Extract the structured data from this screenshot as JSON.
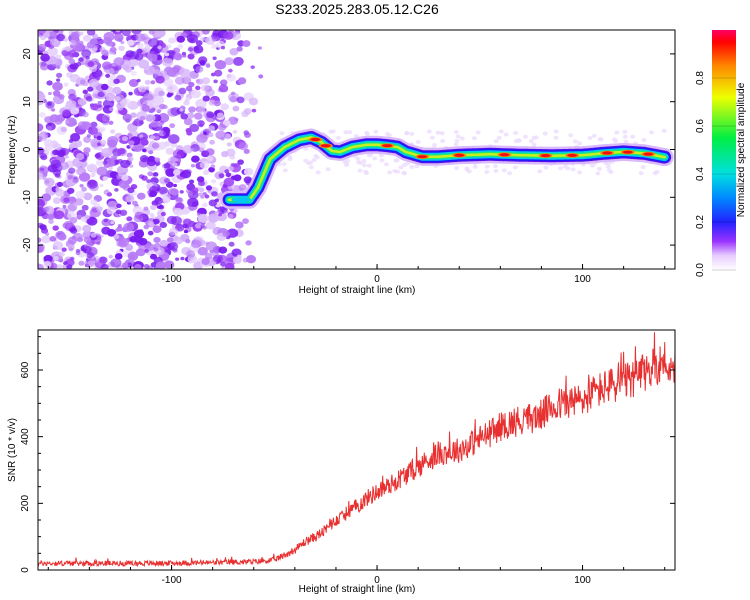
{
  "figure_title": "S233.2025.283.05.12.C26",
  "chart_data": [
    {
      "type": "heatmap",
      "title": "S233.2025.283.05.12.C26",
      "xlabel": "Height of straight line (km)",
      "ylabel": "Frequency (Hz)",
      "xlim": [
        -165,
        145
      ],
      "ylim": [
        -25,
        25
      ],
      "x_ticks": [
        "-100",
        "0",
        "100"
      ],
      "x_tick_values": [
        -100,
        0,
        100
      ],
      "y_ticks": [
        "-20",
        "-10",
        "0",
        "10",
        "20"
      ],
      "y_tick_values": [
        -20,
        -10,
        0,
        10,
        20
      ],
      "colorbar": {
        "label": "Normalized spectral amplitude",
        "range": [
          0,
          1
        ],
        "ticks": [
          "0.0",
          "0.2",
          "0.4",
          "0.6",
          "0.8"
        ],
        "tick_values": [
          0,
          0.2,
          0.4,
          0.6,
          0.8
        ],
        "colormap": "rainbow (magenta-blue-cyan-green-yellow-red)"
      },
      "noise_region_x": [
        -165,
        -55
      ],
      "ridge": {
        "description": "dominant frequency track",
        "x": [
          -72,
          -62,
          -58,
          -52,
          -45,
          -38,
          -32,
          -27,
          -22,
          -18,
          -12,
          -5,
          0,
          5,
          10,
          14,
          18,
          22,
          30,
          40,
          55,
          70,
          85,
          100,
          110,
          120,
          130,
          140
        ],
        "freq": [
          -10.5,
          -10.5,
          -8,
          -2,
          0.5,
          2,
          2.5,
          1.5,
          -0.3,
          -0.5,
          0.5,
          1,
          1,
          0.8,
          0.5,
          -0.5,
          -1,
          -1.5,
          -1.5,
          -1.2,
          -1,
          -1.2,
          -1.3,
          -1.2,
          -0.8,
          -0.5,
          -0.8,
          -1.6
        ]
      }
    },
    {
      "type": "line",
      "title": "",
      "xlabel": "Height of straight line (km)",
      "ylabel": "SNR (10 * v/v)",
      "xlim": [
        -165,
        145
      ],
      "ylim": [
        0,
        720
      ],
      "x_ticks": [
        "-100",
        "0",
        "100"
      ],
      "x_tick_values": [
        -100,
        0,
        100
      ],
      "y_ticks": [
        "0",
        "200",
        "400",
        "600"
      ],
      "y_tick_values": [
        0,
        200,
        400,
        600
      ],
      "series": [
        {
          "name": "SNR",
          "color": "#e83030",
          "x": [
            -165,
            -140,
            -110,
            -80,
            -60,
            -50,
            -45,
            -40,
            -35,
            -30,
            -25,
            -20,
            -15,
            -10,
            -5,
            0,
            5,
            10,
            15,
            20,
            25,
            30,
            35,
            40,
            45,
            50,
            55,
            60,
            65,
            70,
            75,
            80,
            85,
            90,
            95,
            100,
            105,
            110,
            115,
            120,
            125,
            130,
            135,
            140,
            145
          ],
          "values": [
            20,
            20,
            20,
            22,
            25,
            30,
            45,
            60,
            85,
            100,
            120,
            150,
            170,
            190,
            215,
            235,
            250,
            270,
            290,
            310,
            330,
            350,
            355,
            360,
            375,
            395,
            410,
            430,
            440,
            450,
            455,
            465,
            490,
            500,
            505,
            510,
            530,
            545,
            555,
            560,
            575,
            590,
            610,
            630,
            570
          ]
        }
      ]
    }
  ]
}
